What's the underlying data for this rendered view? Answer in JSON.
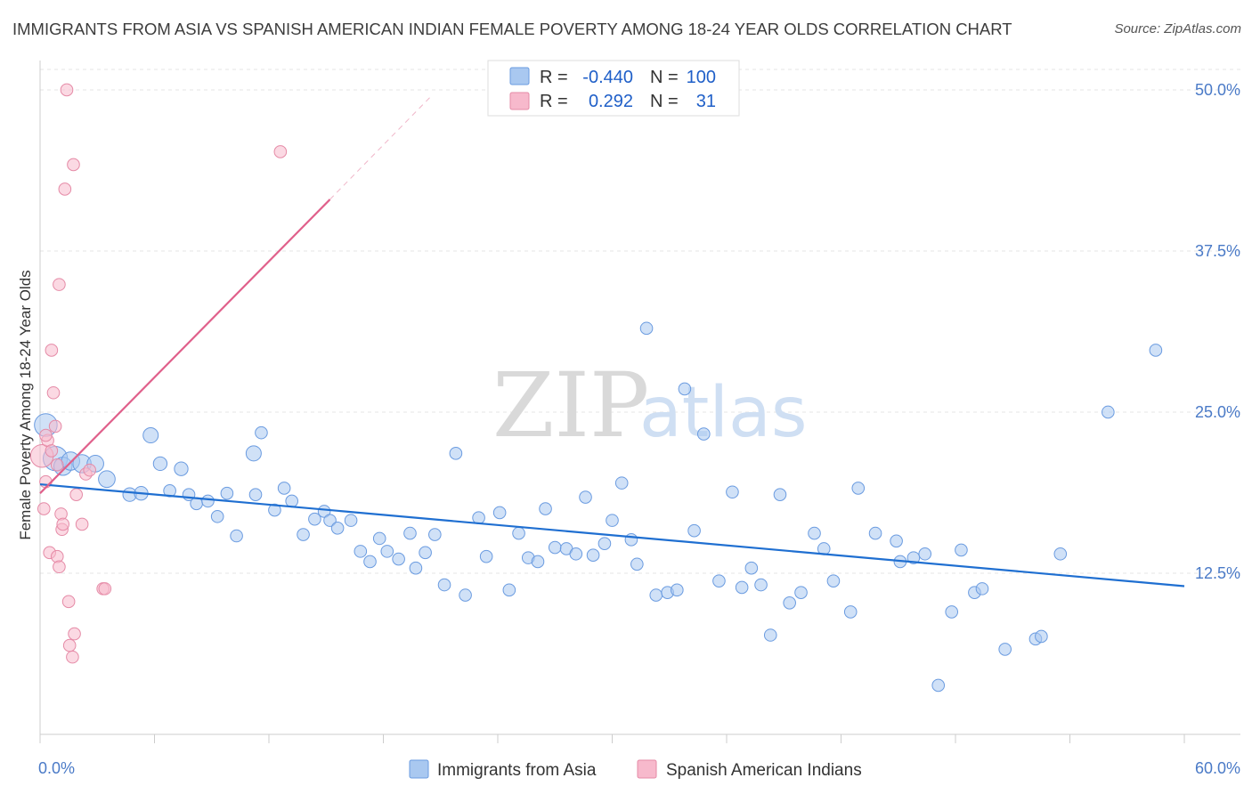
{
  "title": "IMMIGRANTS FROM ASIA VS SPANISH AMERICAN INDIAN FEMALE POVERTY AMONG 18-24 YEAR OLDS CORRELATION CHART",
  "source": "Source: ZipAtlas.com",
  "watermark": {
    "zip": "ZIP",
    "atlas": "atlas"
  },
  "legend_top": {
    "r_label": "R =",
    "n_label": "N =",
    "rows": [
      {
        "r": "-0.440",
        "n": "100",
        "color": "#a9c8f0"
      },
      {
        "r": "0.292",
        "n": "31",
        "color": "#f7b9cc"
      }
    ]
  },
  "chart_data": {
    "type": "scatter",
    "ylabel": "Female Poverty Among 18-24 Year Olds",
    "xlim": [
      0,
      60
    ],
    "ylim": [
      0,
      52
    ],
    "x_tick_labels": [
      "0.0%",
      "60.0%"
    ],
    "y_ticks": [
      12.5,
      25.0,
      37.5,
      50.0
    ],
    "y_tick_labels": [
      "12.5%",
      "25.0%",
      "37.5%",
      "50.0%"
    ],
    "grid": true,
    "series": [
      {
        "name": "Immigrants from Asia",
        "color": "#a9c8f0",
        "stroke": "#6a9be0",
        "trend": {
          "x0": 0,
          "y0": 19.4,
          "x1": 60,
          "y1": 11.5,
          "color": "#1f6fd1"
        },
        "points": [
          [
            0.3,
            24.0,
            1.5
          ],
          [
            0.8,
            21.4,
            1.6
          ],
          [
            1.2,
            20.8,
            1.2
          ],
          [
            1.6,
            21.2,
            1.2
          ],
          [
            2.2,
            21.0,
            1.2
          ],
          [
            2.9,
            21.0,
            1.1
          ],
          [
            3.5,
            19.8,
            1.1
          ],
          [
            4.7,
            18.6,
            0.9
          ],
          [
            5.3,
            18.7,
            0.9
          ],
          [
            5.8,
            23.2,
            1.0
          ],
          [
            6.3,
            21.0,
            0.9
          ],
          [
            6.8,
            18.9,
            0.8
          ],
          [
            7.4,
            20.6,
            0.9
          ],
          [
            7.8,
            18.6,
            0.8
          ],
          [
            8.2,
            17.9,
            0.8
          ],
          [
            8.8,
            18.1,
            0.8
          ],
          [
            9.3,
            16.9,
            0.8
          ],
          [
            9.8,
            18.7,
            0.8
          ],
          [
            10.3,
            15.4,
            0.8
          ],
          [
            11.2,
            21.8,
            1.0
          ],
          [
            11.3,
            18.6,
            0.8
          ],
          [
            11.6,
            23.4,
            0.8
          ],
          [
            12.3,
            17.4,
            0.8
          ],
          [
            12.8,
            19.1,
            0.8
          ],
          [
            13.2,
            18.1,
            0.8
          ],
          [
            13.8,
            15.5,
            0.8
          ],
          [
            14.4,
            16.7,
            0.8
          ],
          [
            14.9,
            17.3,
            0.8
          ],
          [
            15.2,
            16.6,
            0.8
          ],
          [
            15.6,
            16.0,
            0.8
          ],
          [
            16.3,
            16.6,
            0.8
          ],
          [
            16.8,
            14.2,
            0.8
          ],
          [
            17.3,
            13.4,
            0.8
          ],
          [
            17.8,
            15.2,
            0.8
          ],
          [
            18.2,
            14.2,
            0.8
          ],
          [
            18.8,
            13.6,
            0.8
          ],
          [
            19.4,
            15.6,
            0.8
          ],
          [
            19.7,
            12.9,
            0.8
          ],
          [
            20.2,
            14.1,
            0.8
          ],
          [
            20.7,
            15.5,
            0.8
          ],
          [
            21.2,
            11.6,
            0.8
          ],
          [
            21.8,
            21.8,
            0.8
          ],
          [
            22.3,
            10.8,
            0.8
          ],
          [
            23.0,
            16.8,
            0.8
          ],
          [
            23.4,
            13.8,
            0.8
          ],
          [
            24.1,
            17.2,
            0.8
          ],
          [
            24.6,
            11.2,
            0.8
          ],
          [
            25.1,
            15.6,
            0.8
          ],
          [
            25.6,
            13.7,
            0.8
          ],
          [
            26.1,
            13.4,
            0.8
          ],
          [
            26.5,
            17.5,
            0.8
          ],
          [
            27.0,
            14.5,
            0.8
          ],
          [
            27.6,
            14.4,
            0.8
          ],
          [
            28.1,
            14.0,
            0.8
          ],
          [
            28.6,
            18.4,
            0.8
          ],
          [
            29.0,
            13.9,
            0.8
          ],
          [
            29.6,
            14.8,
            0.8
          ],
          [
            30.0,
            16.6,
            0.8
          ],
          [
            30.5,
            19.5,
            0.8
          ],
          [
            31.0,
            15.1,
            0.8
          ],
          [
            31.3,
            13.2,
            0.8
          ],
          [
            31.8,
            31.5,
            0.8
          ],
          [
            32.3,
            10.8,
            0.8
          ],
          [
            32.9,
            11.0,
            0.8
          ],
          [
            33.4,
            11.2,
            0.8
          ],
          [
            33.8,
            26.8,
            0.8
          ],
          [
            34.3,
            15.8,
            0.8
          ],
          [
            34.8,
            23.3,
            0.8
          ],
          [
            35.6,
            11.9,
            0.8
          ],
          [
            36.3,
            18.8,
            0.8
          ],
          [
            36.8,
            11.4,
            0.8
          ],
          [
            37.3,
            12.9,
            0.8
          ],
          [
            37.8,
            11.6,
            0.8
          ],
          [
            38.3,
            7.7,
            0.8
          ],
          [
            38.8,
            18.6,
            0.8
          ],
          [
            39.3,
            10.2,
            0.8
          ],
          [
            39.9,
            11.0,
            0.8
          ],
          [
            40.6,
            15.6,
            0.8
          ],
          [
            41.1,
            14.4,
            0.8
          ],
          [
            41.6,
            11.9,
            0.8
          ],
          [
            42.5,
            9.5,
            0.8
          ],
          [
            42.9,
            19.1,
            0.8
          ],
          [
            43.8,
            15.6,
            0.8
          ],
          [
            44.9,
            15.0,
            0.8
          ],
          [
            45.1,
            13.4,
            0.8
          ],
          [
            45.8,
            13.7,
            0.8
          ],
          [
            46.4,
            14.0,
            0.8
          ],
          [
            47.1,
            3.8,
            0.8
          ],
          [
            47.8,
            9.5,
            0.8
          ],
          [
            48.3,
            14.3,
            0.8
          ],
          [
            49.0,
            11.0,
            0.8
          ],
          [
            49.4,
            11.3,
            0.8
          ],
          [
            50.6,
            6.6,
            0.8
          ],
          [
            52.2,
            7.4,
            0.8
          ],
          [
            52.5,
            7.6,
            0.8
          ],
          [
            53.5,
            14.0,
            0.8
          ],
          [
            56.0,
            25.0,
            0.8
          ],
          [
            58.5,
            29.8,
            0.8
          ]
        ]
      },
      {
        "name": "Spanish American Indians",
        "color": "#f7b9cc",
        "stroke": "#e58aa6",
        "trend": {
          "x0": 0,
          "y0": 18.7,
          "x1": 15.2,
          "y1": 41.5,
          "x2": 20.5,
          "y2": 49.5,
          "color": "#e0608b"
        },
        "points": [
          [
            0.1,
            21.6,
            1.5
          ],
          [
            0.2,
            17.5,
            0.8
          ],
          [
            0.3,
            19.6,
            0.8
          ],
          [
            0.4,
            22.8,
            0.8
          ],
          [
            0.5,
            14.1,
            0.8
          ],
          [
            0.6,
            29.8,
            0.8
          ],
          [
            0.7,
            26.5,
            0.8
          ],
          [
            0.8,
            23.9,
            0.8
          ],
          [
            0.9,
            13.8,
            0.8
          ],
          [
            1.0,
            34.9,
            0.8
          ],
          [
            1.0,
            13.0,
            0.8
          ],
          [
            1.1,
            17.1,
            0.8
          ],
          [
            1.15,
            15.9,
            0.8
          ],
          [
            1.2,
            16.3,
            0.8
          ],
          [
            1.3,
            42.3,
            0.8
          ],
          [
            1.4,
            50.0,
            0.8
          ],
          [
            1.5,
            10.3,
            0.8
          ],
          [
            1.55,
            6.9,
            0.8
          ],
          [
            1.7,
            6.0,
            0.8
          ],
          [
            1.75,
            44.2,
            0.8
          ],
          [
            1.8,
            7.8,
            0.8
          ],
          [
            1.9,
            18.6,
            0.8
          ],
          [
            2.2,
            16.3,
            0.8
          ],
          [
            2.4,
            20.2,
            0.8
          ],
          [
            3.3,
            11.3,
            0.8
          ],
          [
            3.4,
            11.3,
            0.8
          ],
          [
            12.6,
            45.2,
            0.8
          ],
          [
            0.9,
            20.9,
            0.8
          ],
          [
            2.6,
            20.5,
            0.8
          ],
          [
            0.3,
            23.2,
            0.8
          ],
          [
            0.6,
            22.0,
            0.8
          ]
        ]
      }
    ]
  }
}
